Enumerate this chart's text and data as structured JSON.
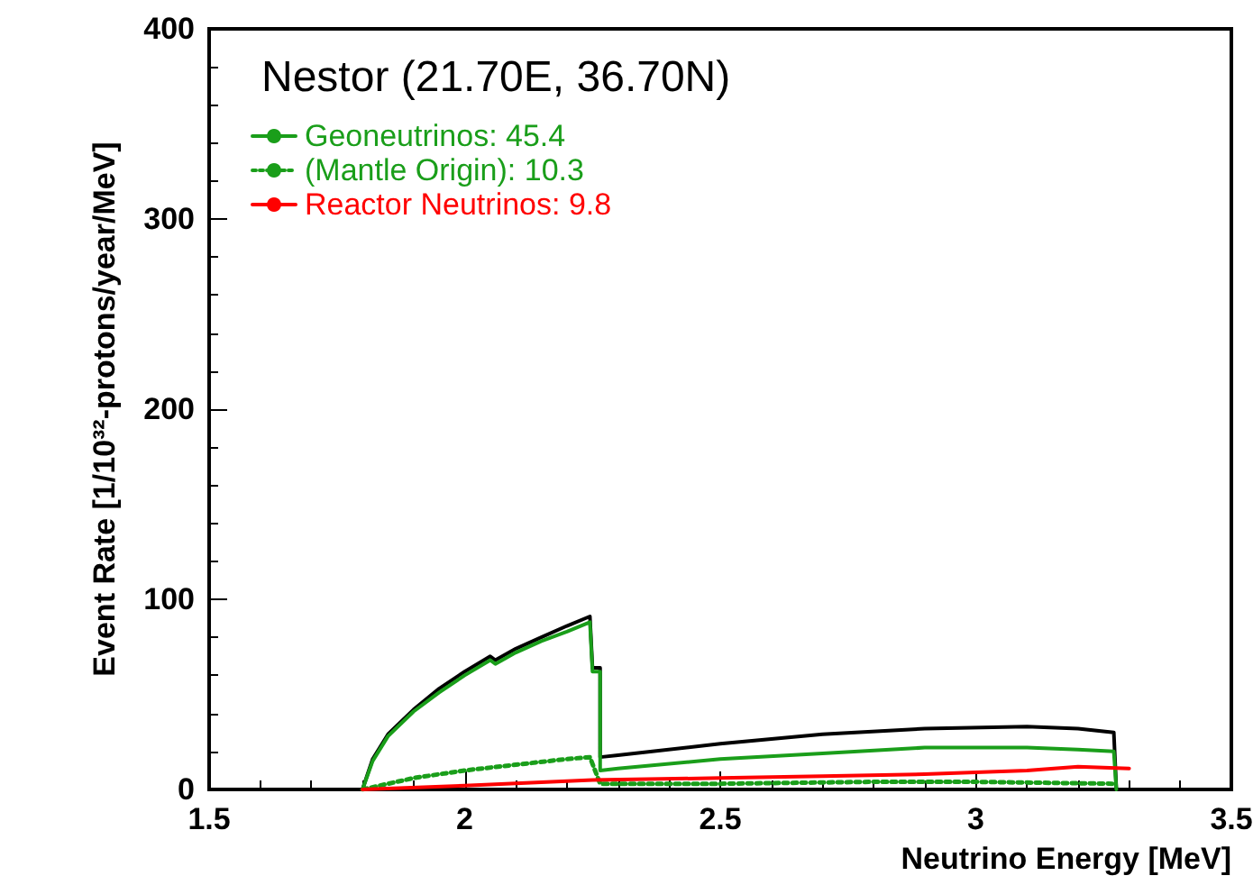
{
  "chart_data": {
    "type": "line",
    "title": "Nestor (21.70E, 36.70N)",
    "xlabel": "Neutrino Energy [MeV]",
    "ylabel": "Event Rate [1/10³²-protons/year/MeV]",
    "xlim": [
      1.5,
      3.5
    ],
    "xticks": [
      1.5,
      2,
      2.5,
      3,
      3.5
    ],
    "ylim": [
      0,
      400
    ],
    "yticks": [
      0,
      100,
      200,
      300,
      400
    ],
    "grid": false,
    "legend": "top left",
    "marker": "none",
    "line_style": "solid",
    "series": [
      {
        "color": "#000000",
        "x": [
          1.8,
          1.82,
          1.85,
          1.9,
          1.95,
          2.0,
          2.05,
          2.06,
          2.1,
          2.15,
          2.2,
          2.245,
          2.25,
          2.265,
          2.265,
          2.3,
          2.5,
          2.7,
          2.9,
          3.1,
          3.2,
          3.27,
          3.275
        ],
        "values": [
          0,
          16,
          29,
          42,
          53,
          62,
          70,
          68,
          74,
          80,
          86,
          91,
          64,
          64,
          17,
          18,
          24,
          29,
          32,
          33,
          32,
          30,
          0
        ]
      },
      {
        "name": "Geoneutrinos: 45.4",
        "color": "#1a9e1a",
        "x": [
          1.8,
          1.82,
          1.85,
          1.9,
          1.95,
          2.0,
          2.05,
          2.06,
          2.1,
          2.15,
          2.2,
          2.245,
          2.25,
          2.265,
          2.265,
          2.3,
          2.5,
          2.7,
          2.9,
          3.1,
          3.2,
          3.27,
          3.275
        ],
        "values": [
          0,
          15,
          28,
          41,
          51,
          60,
          68,
          66,
          72,
          78,
          83,
          88,
          62,
          62,
          10,
          11,
          16,
          19,
          22,
          22,
          21,
          20,
          0
        ]
      },
      {
        "name": "(Mantle Origin): 10.3",
        "color": "#1a9e1a",
        "line_style": "dotted",
        "x": [
          1.8,
          1.9,
          2.0,
          2.1,
          2.2,
          2.245,
          2.265,
          2.5,
          2.8,
          3.0,
          3.27
        ],
        "values": [
          0,
          6,
          10,
          13,
          16,
          17,
          3,
          3,
          4,
          4,
          3
        ]
      },
      {
        "name": "Reactor Neutrinos: 9.8",
        "color": "#ff0000",
        "x": [
          1.8,
          2.0,
          2.25,
          2.5,
          2.7,
          2.9,
          3.0,
          3.1,
          3.2,
          3.3
        ],
        "values": [
          0,
          2,
          5,
          6,
          7,
          8,
          9,
          10,
          12,
          11
        ]
      }
    ]
  }
}
